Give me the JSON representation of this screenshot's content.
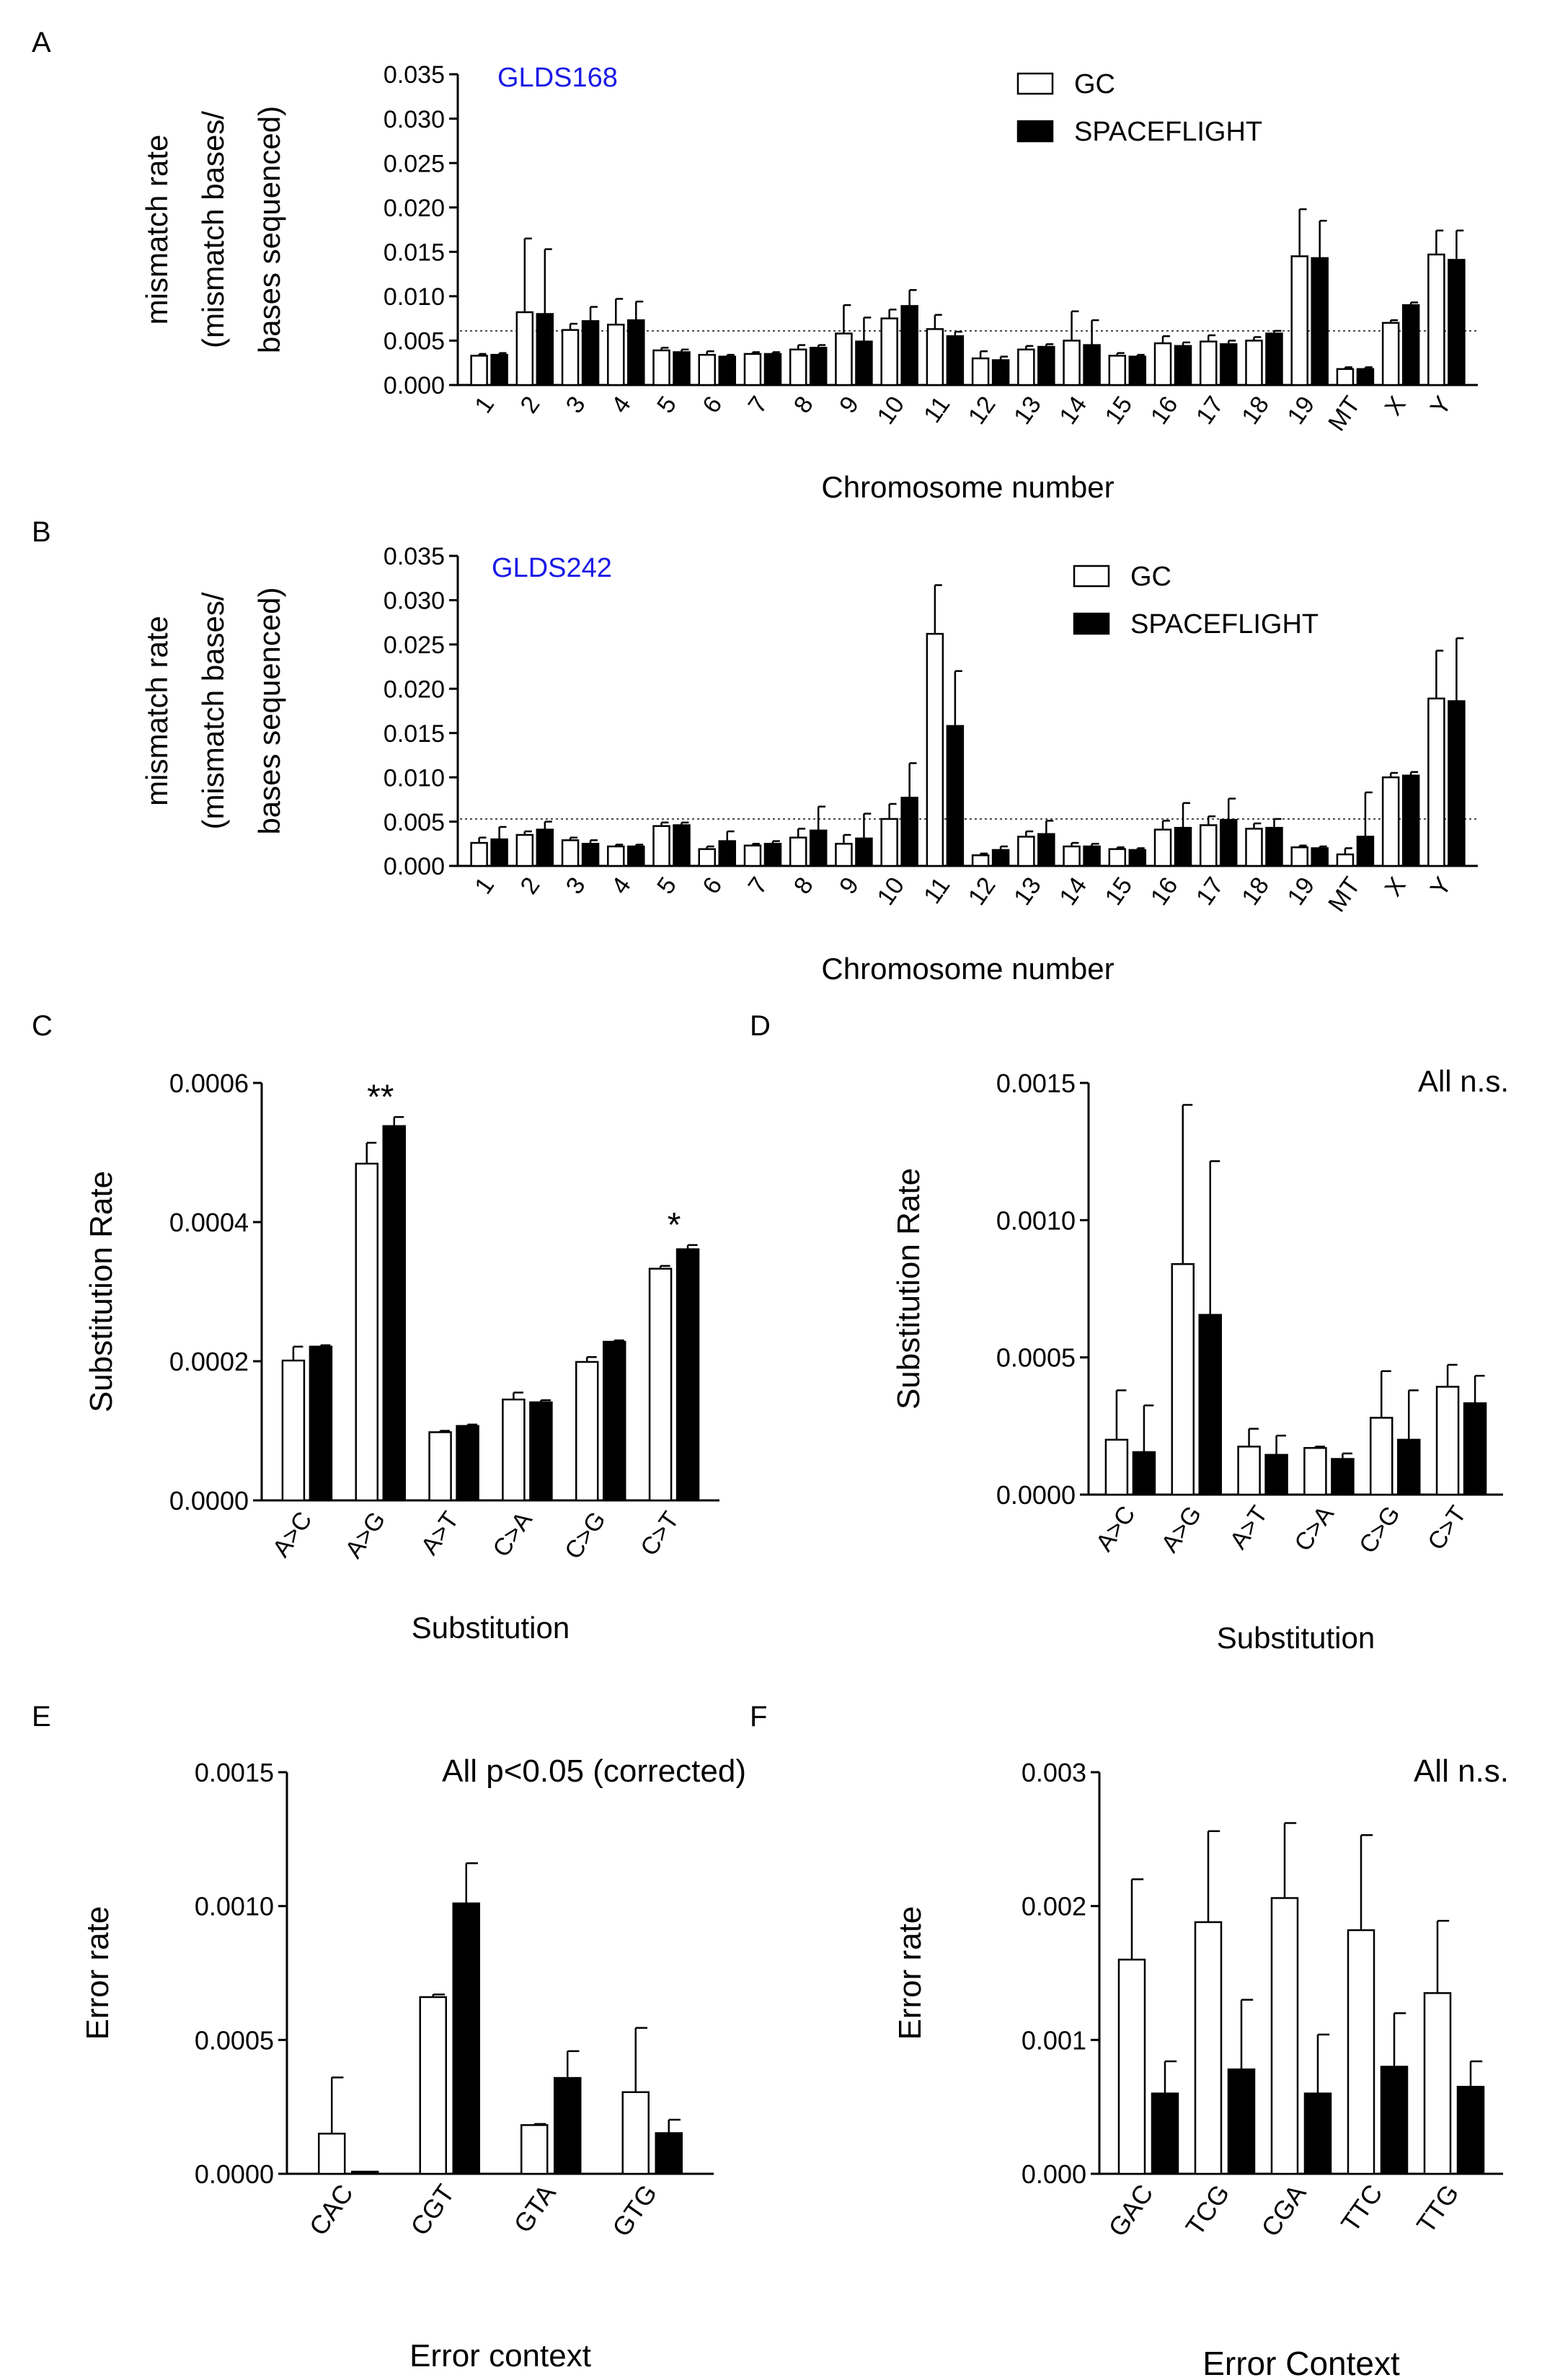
{
  "figure": {
    "panels": [
      "A",
      "B",
      "C",
      "D",
      "E",
      "F"
    ]
  },
  "colors": {
    "gc_fill": "#ffffff",
    "spaceflight_fill": "#000000",
    "dataset_label": "#1a1ae6",
    "axis": "#000000"
  },
  "chart_data": [
    {
      "panel": "A",
      "type": "bar",
      "title": "GLDS168",
      "xlabel": "Chromosome number",
      "ylabel_lines": [
        "mismatch rate",
        "(mismatch bases/",
        "bases sequenced)"
      ],
      "ylim": [
        0,
        0.035
      ],
      "yticks": [
        "0.000",
        "0.005",
        "0.010",
        "0.015",
        "0.020",
        "0.025",
        "0.030",
        "0.035"
      ],
      "categories": [
        "1",
        "2",
        "3",
        "4",
        "5",
        "6",
        "7",
        "8",
        "9",
        "10",
        "11",
        "12",
        "13",
        "14",
        "15",
        "16",
        "17",
        "18",
        "19",
        "MT",
        "X",
        "Y"
      ],
      "reference_line": 0.0061,
      "legend": {
        "position": "top-right",
        "entries": [
          "GC",
          "SPACEFLIGHT"
        ]
      },
      "series": [
        {
          "name": "GC",
          "values": [
            0.0033,
            0.0082,
            0.0062,
            0.0068,
            0.0039,
            0.0034,
            0.0035,
            0.004,
            0.0058,
            0.0075,
            0.0063,
            0.003,
            0.004,
            0.005,
            0.0033,
            0.0047,
            0.0049,
            0.005,
            0.0145,
            0.0018,
            0.007,
            0.0147
          ],
          "errors": [
            0.0002,
            0.0083,
            0.0007,
            0.0029,
            0.0003,
            0.0004,
            0.0002,
            0.0005,
            0.0032,
            0.001,
            0.0016,
            0.0008,
            0.0004,
            0.0033,
            0.0003,
            0.0008,
            0.0007,
            0.0004,
            0.0053,
            0.0002,
            0.0003,
            0.0027
          ]
        },
        {
          "name": "SPACEFLIGHT",
          "values": [
            0.0034,
            0.008,
            0.0072,
            0.0073,
            0.0037,
            0.0032,
            0.0035,
            0.0042,
            0.0049,
            0.0089,
            0.0055,
            0.0028,
            0.0043,
            0.0045,
            0.0032,
            0.0044,
            0.0046,
            0.0058,
            0.0143,
            0.0018,
            0.009,
            0.0141
          ],
          "errors": [
            0.0002,
            0.0073,
            0.0016,
            0.0021,
            0.0003,
            0.0002,
            0.0002,
            0.0003,
            0.0027,
            0.0018,
            0.0005,
            0.0004,
            0.0003,
            0.0028,
            0.0002,
            0.0004,
            0.0004,
            0.0003,
            0.0042,
            0.0002,
            0.0003,
            0.0033
          ]
        }
      ]
    },
    {
      "panel": "B",
      "type": "bar",
      "title": "GLDS242",
      "xlabel": "Chromosome number",
      "ylabel_lines": [
        "mismatch rate",
        "(mismatch bases/",
        "bases sequenced)"
      ],
      "ylim": [
        0,
        0.035
      ],
      "yticks": [
        "0.000",
        "0.005",
        "0.010",
        "0.015",
        "0.020",
        "0.025",
        "0.030",
        "0.035"
      ],
      "categories": [
        "1",
        "2",
        "3",
        "4",
        "5",
        "6",
        "7",
        "8",
        "9",
        "10",
        "11",
        "12",
        "13",
        "14",
        "15",
        "16",
        "17",
        "18",
        "19",
        "MT",
        "X",
        "Y"
      ],
      "reference_line": 0.0053,
      "legend": {
        "position": "top-right",
        "entries": [
          "GC",
          "SPACEFLIGHT"
        ]
      },
      "series": [
        {
          "name": "GC",
          "values": [
            0.0026,
            0.0035,
            0.0029,
            0.0022,
            0.0045,
            0.0019,
            0.0023,
            0.0032,
            0.0025,
            0.0053,
            0.0262,
            0.0012,
            0.0033,
            0.0022,
            0.0019,
            0.0041,
            0.0046,
            0.0042,
            0.0021,
            0.0013,
            0.01,
            0.0189
          ],
          "errors": [
            0.0006,
            0.0004,
            0.0003,
            0.0002,
            0.0004,
            0.0003,
            0.0002,
            0.001,
            0.001,
            0.0017,
            0.0055,
            0.0002,
            0.0006,
            0.0004,
            0.0002,
            0.001,
            0.001,
            0.0006,
            0.0002,
            0.0007,
            0.0005,
            0.0054
          ]
        },
        {
          "name": "SPACEFLIGHT",
          "values": [
            0.003,
            0.0041,
            0.0025,
            0.0022,
            0.0046,
            0.0028,
            0.0025,
            0.004,
            0.0031,
            0.0077,
            0.0158,
            0.0018,
            0.0036,
            0.0022,
            0.0018,
            0.0043,
            0.0052,
            0.0043,
            0.002,
            0.0033,
            0.0102,
            0.0186
          ],
          "errors": [
            0.0014,
            0.0009,
            0.0004,
            0.0002,
            0.0003,
            0.0011,
            0.0003,
            0.0027,
            0.0028,
            0.0039,
            0.0062,
            0.0004,
            0.0015,
            0.0003,
            0.0002,
            0.0028,
            0.0024,
            0.001,
            0.0002,
            0.005,
            0.0004,
            0.0071
          ]
        }
      ]
    },
    {
      "panel": "C",
      "type": "bar",
      "title": "",
      "xlabel": "Substitution",
      "ylabel": "Substitution Rate",
      "ylim": [
        0,
        0.0006
      ],
      "yticks": [
        "0.0000",
        "0.0002",
        "0.0004",
        "0.0006"
      ],
      "categories": [
        "A>C",
        "A>G",
        "A>T",
        "C>A",
        "C>G",
        "C>T"
      ],
      "significance": {
        "A>G": "**",
        "C>T": "*"
      },
      "series": [
        {
          "name": "GC",
          "values": [
            0.000201,
            0.000484,
            9.8e-05,
            0.000145,
            0.000199,
            0.000333
          ],
          "errors": [
            2e-05,
            3e-05,
            2e-06,
            1e-05,
            7e-06,
            4e-06
          ]
        },
        {
          "name": "SPACEFLIGHT",
          "values": [
            0.000221,
            0.000538,
            0.000107,
            0.000141,
            0.000228,
            0.000361
          ],
          "errors": [
            2e-06,
            1.3e-05,
            2e-06,
            3e-06,
            2e-06,
            6e-06
          ]
        }
      ]
    },
    {
      "panel": "D",
      "type": "bar",
      "title": "All n.s.",
      "xlabel": "Substitution",
      "ylabel": "Substitution Rate",
      "ylim": [
        0,
        0.0015
      ],
      "yticks": [
        "0.0000",
        "0.0005",
        "0.0010",
        "0.0015"
      ],
      "categories": [
        "A>C",
        "A>G",
        "A>T",
        "C>A",
        "C>G",
        "C>T"
      ],
      "series": [
        {
          "name": "GC",
          "values": [
            0.0002,
            0.00084,
            0.000175,
            0.00017,
            0.00028,
            0.000393
          ],
          "errors": [
            0.00018,
            0.00058,
            6.5e-05,
            5e-06,
            0.00017,
            8e-05
          ]
        },
        {
          "name": "SPACEFLIGHT",
          "values": [
            0.000155,
            0.000655,
            0.000145,
            0.00013,
            0.0002,
            0.000333
          ],
          "errors": [
            0.00017,
            0.00056,
            7e-05,
            2e-05,
            0.00018,
            0.0001
          ]
        }
      ]
    },
    {
      "panel": "E",
      "type": "bar",
      "title": "All p<0.05 (corrected)",
      "xlabel": "Error context",
      "ylabel": "Error rate",
      "ylim": [
        0,
        0.0015
      ],
      "yticks": [
        "0.0000",
        "0.0005",
        "0.0010",
        "0.0015"
      ],
      "categories": [
        "CAC",
        "CGT",
        "GTA",
        "GTG"
      ],
      "series": [
        {
          "name": "GC",
          "values": [
            0.00015,
            0.00066,
            0.000182,
            0.000305
          ],
          "errors": [
            0.00021,
            1e-05,
            4e-06,
            0.00024
          ]
        },
        {
          "name": "SPACEFLIGHT",
          "values": [
            8e-06,
            0.00101,
            0.000358,
            0.000152
          ],
          "errors": [
            0,
            0.00015,
            0.0001,
            5e-05
          ]
        }
      ]
    },
    {
      "panel": "F",
      "type": "bar",
      "title": "All n.s.",
      "xlabel": "Error  Context",
      "ylabel": "Error rate",
      "ylim": [
        0,
        0.003
      ],
      "yticks": [
        "0.000",
        "0.001",
        "0.002",
        "0.003"
      ],
      "categories": [
        "GAC",
        "TCG",
        "CGA",
        "TTC",
        "TTG"
      ],
      "series": [
        {
          "name": "GC",
          "values": [
            0.0016,
            0.00188,
            0.00206,
            0.00182,
            0.00135
          ],
          "errors": [
            0.0006,
            0.00068,
            0.00056,
            0.00071,
            0.00054
          ]
        },
        {
          "name": "SPACEFLIGHT",
          "values": [
            0.0006,
            0.00078,
            0.0006,
            0.0008,
            0.00065
          ],
          "errors": [
            0.00024,
            0.00052,
            0.00044,
            0.0004,
            0.00019
          ]
        }
      ]
    }
  ]
}
